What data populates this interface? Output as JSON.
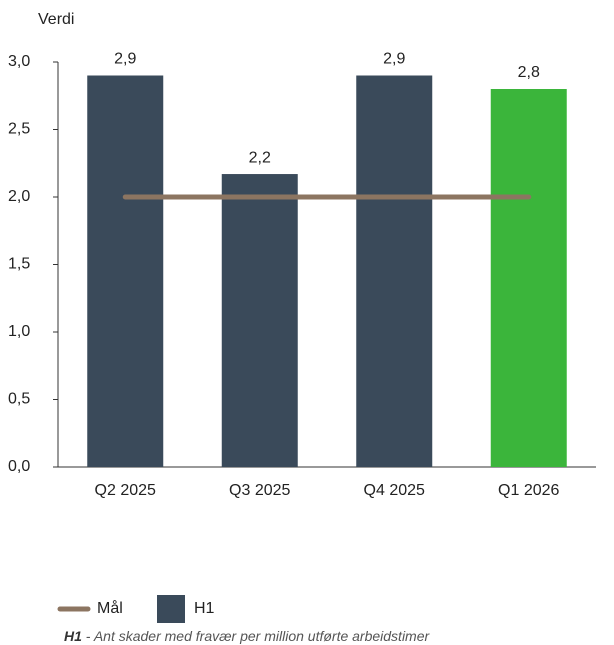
{
  "chart_data": {
    "type": "bar",
    "y_label": "Verdi",
    "categories": [
      "Q2 2025",
      "Q3 2025",
      "Q4 2025",
      "Q1 2026"
    ],
    "series": [
      {
        "name": "Mål",
        "type": "line",
        "color": "#8c7561",
        "values": [
          2,
          2,
          2,
          2
        ]
      },
      {
        "name": "H1",
        "type": "bar",
        "color": "#3a4a5a",
        "colors": [
          "#3a4a5a",
          "#3a4a5a",
          "#3a4a5a",
          "#3bb53b"
        ],
        "values": [
          2.9,
          2.17,
          2.9,
          2.8
        ],
        "value_labels": [
          "2,9",
          "2,2",
          "2,9",
          "2,8"
        ]
      }
    ],
    "ylim": [
      0,
      3
    ],
    "yticks": [
      {
        "value": 0,
        "label": "0,0"
      },
      {
        "value": 0.5,
        "label": "0,5"
      },
      {
        "value": 1,
        "label": "1,0"
      },
      {
        "value": 1.5,
        "label": "1,5"
      },
      {
        "value": 2,
        "label": "2,0"
      },
      {
        "value": 2.5,
        "label": "2,5"
      },
      {
        "value": 3,
        "label": "3,0"
      }
    ],
    "legend": "bottom-left"
  },
  "footnote": {
    "term": "H1",
    "text": " - Ant skader med fravær per million utførte arbeidstimer"
  }
}
